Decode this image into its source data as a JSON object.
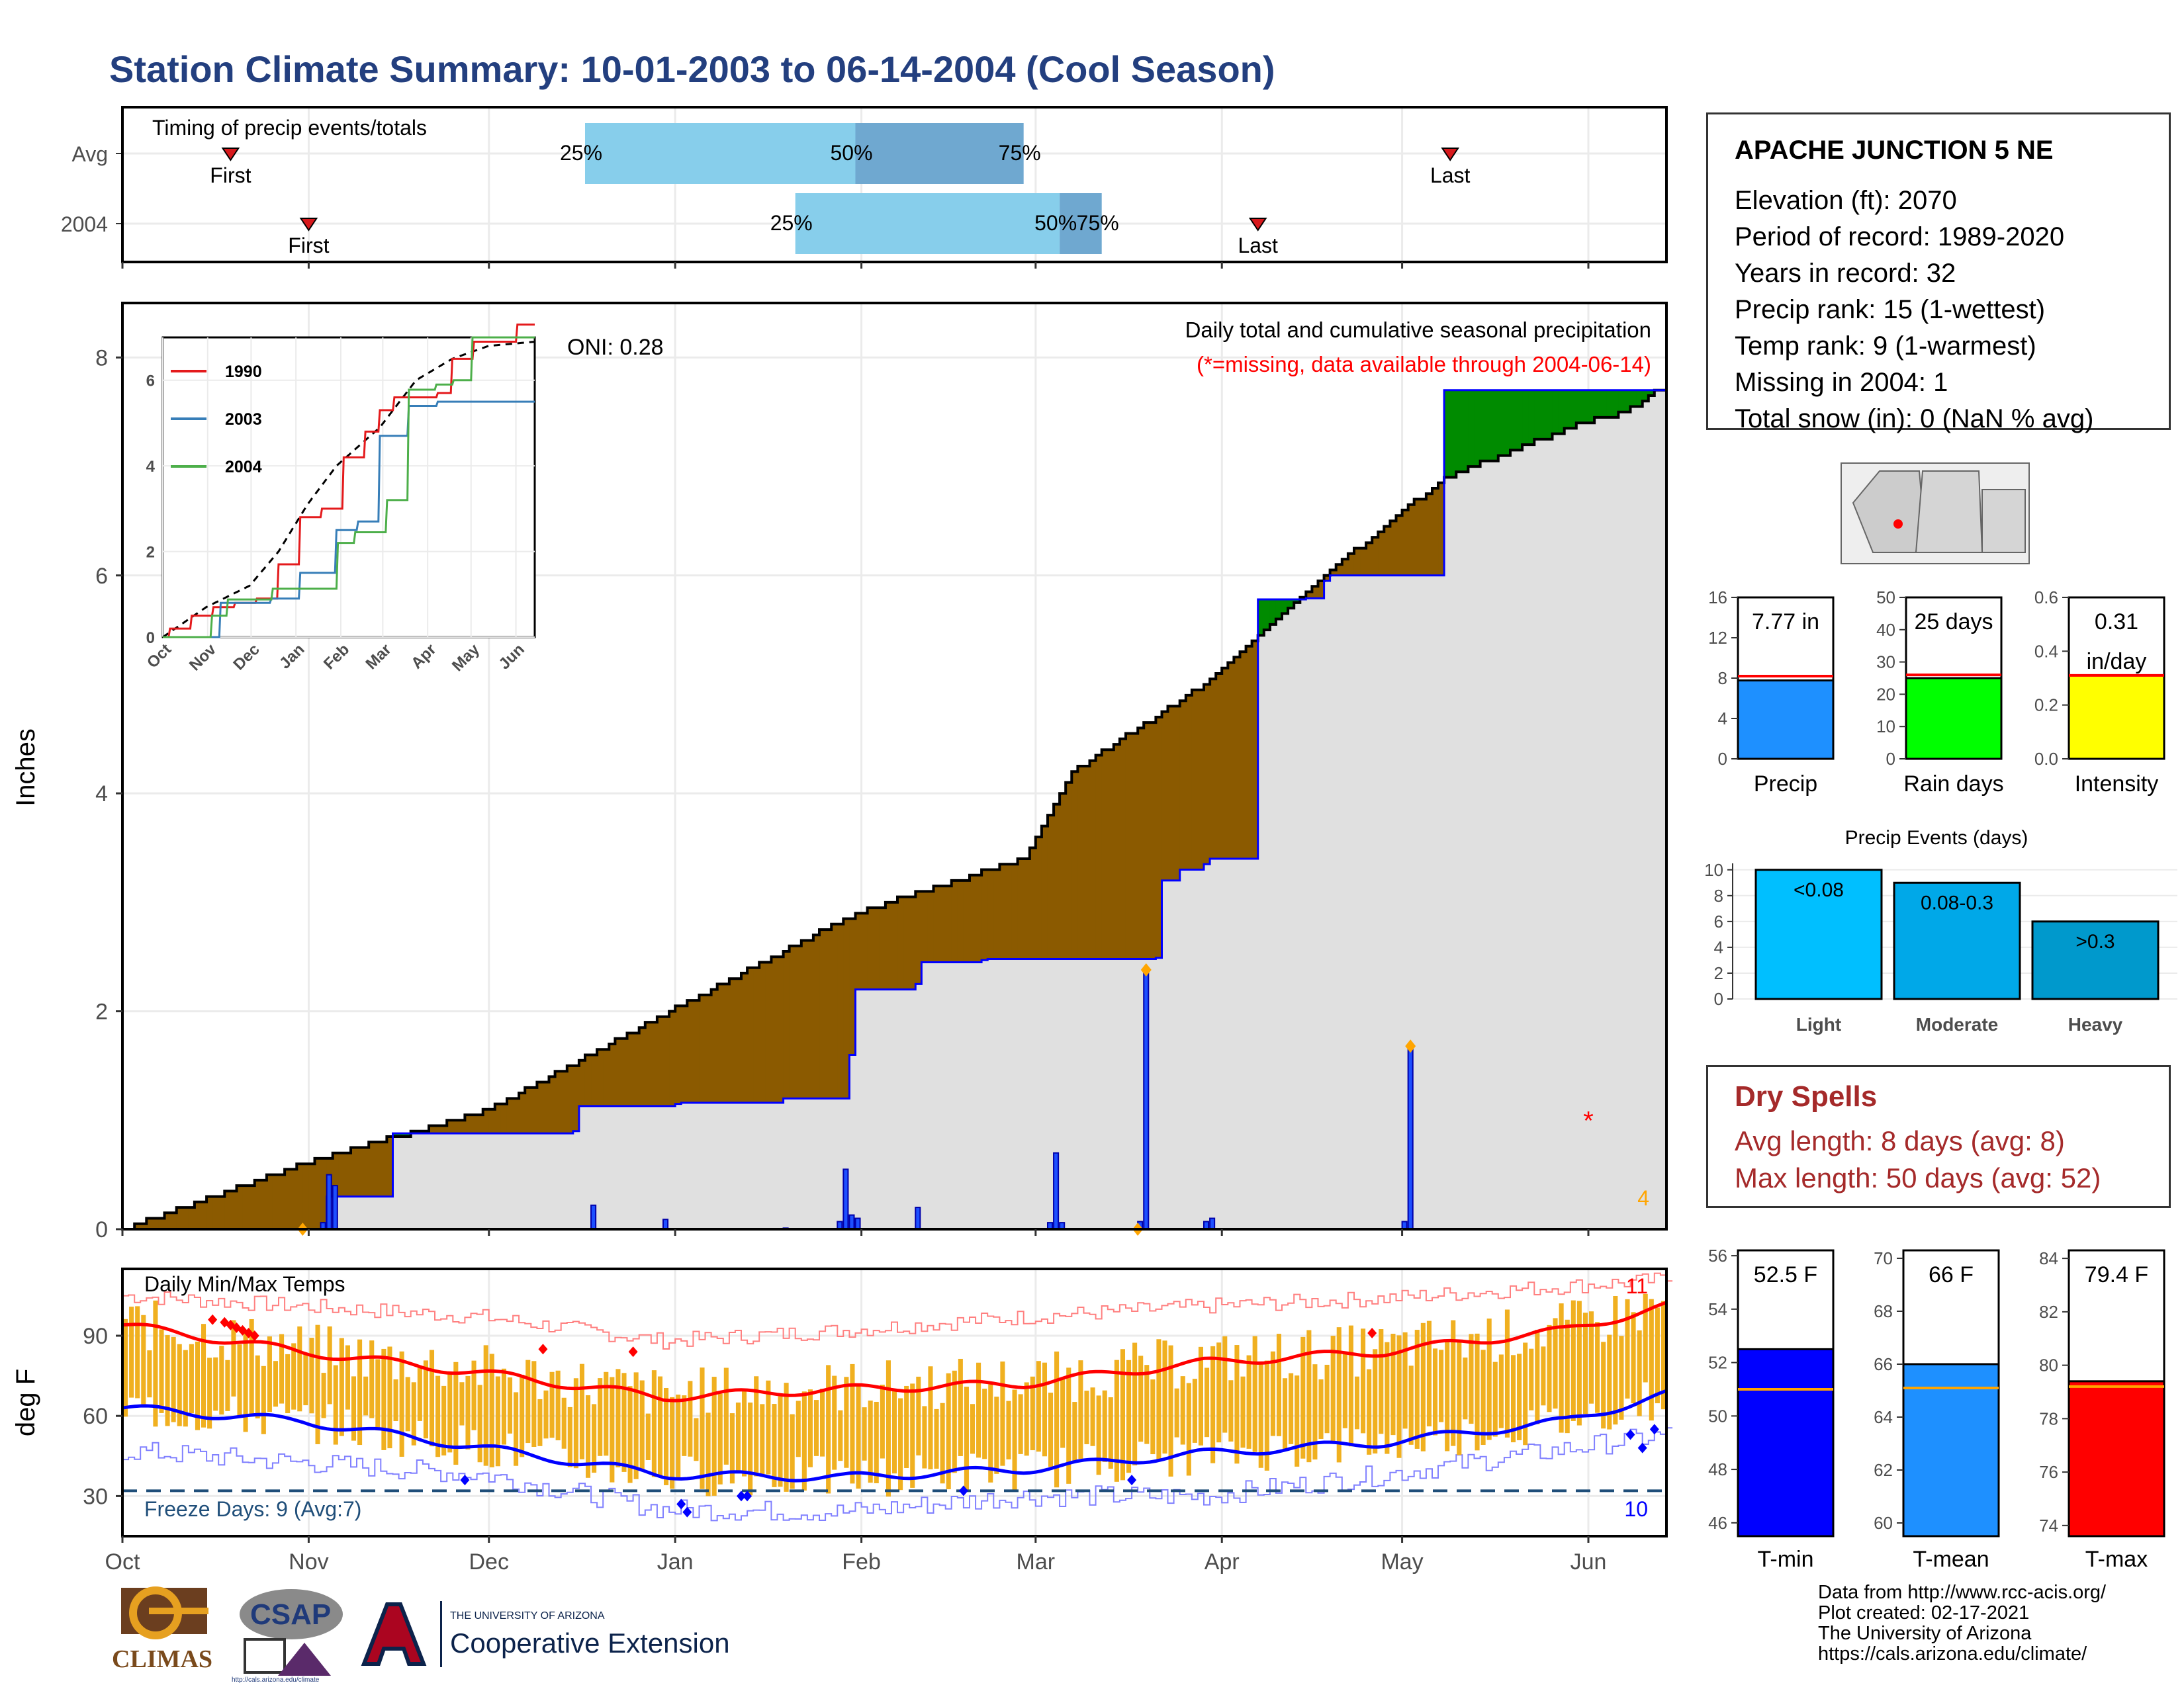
{
  "title": "Station Climate Summary: 10-01-2003 to 06-14-2004 (Cool Season)",
  "timing_panel": {
    "title": "Timing of precip events/totals",
    "rows": [
      {
        "label": "Avg",
        "first_label": "First",
        "last_label": "Last",
        "q25": "25%",
        "q50": "50%",
        "q75": "75%",
        "first_date": "2003-10-19",
        "last_date": "2004-05-09",
        "q25_date": "2003-12-17",
        "q50_date": "2004-01-31",
        "q75_date": "2004-02-28"
      },
      {
        "label": "2004",
        "first_label": "First",
        "last_label": "Last",
        "q25": "25%",
        "q50": "50%",
        "q75": "75%",
        "first_date": "2003-11-01",
        "last_date": "2004-04-07",
        "q25_date": "2004-01-21",
        "q50_date": "2004-03-05",
        "q75_date": "2004-03-12"
      }
    ]
  },
  "precip_panel": {
    "ylabel": "Inches",
    "annotation": "Daily total and cumulative seasonal precipitation",
    "missing_note": "(*=missing, data available through 2004-06-14)",
    "oni": "ONI: 0.28",
    "corner_count": "4",
    "yticks": [
      "0",
      "2",
      "4",
      "6",
      "8"
    ]
  },
  "inset": {
    "legend": [
      "1990",
      "2003",
      "2004"
    ],
    "legend_colors": [
      "#e41a1c",
      "#377eb8",
      "#4daf4a"
    ],
    "yticks": [
      "0",
      "2",
      "4",
      "6"
    ],
    "xticks": [
      "Oct",
      "Nov",
      "Dec",
      "Jan",
      "Feb",
      "Mar",
      "Apr",
      "May",
      "Jun"
    ]
  },
  "temp_panel": {
    "title": "Daily Min/Max Temps",
    "ylabel": "deg F",
    "freeze_label": "Freeze Days: 9 (Avg:7)",
    "max_count": "11",
    "min_count": "10",
    "yticks": [
      "30",
      "60",
      "90"
    ]
  },
  "months": [
    "Oct",
    "Nov",
    "Dec",
    "Jan",
    "Feb",
    "Mar",
    "Apr",
    "May",
    "Jun"
  ],
  "station": {
    "name": "APACHE JUNCTION 5 NE",
    "rows": [
      "Elevation (ft): 2070",
      "Period of record: 1989-2020",
      "Years in record: 32",
      "Precip rank: 15 (1-wettest)",
      "Temp rank: 9 (1-warmest)",
      "Missing in 2004: 1",
      "Total snow (in): 0 (NaN % avg)"
    ]
  },
  "gauges_precip": [
    {
      "label": "Precip",
      "value_text": "7.77 in",
      "value": 7.77,
      "avg": 8.2,
      "ymax": 16,
      "ticks": [
        "0",
        "4",
        "8",
        "12",
        "16"
      ],
      "color": "#1e90ff"
    },
    {
      "label": "Rain days",
      "value_text": "25 days",
      "value": 25,
      "avg": 26,
      "ymax": 50,
      "ticks": [
        "0",
        "10",
        "20",
        "30",
        "40",
        "50"
      ],
      "color": "#00ff00"
    },
    {
      "label": "Intensity",
      "value_text": "0.31\nin/day",
      "value": 0.31,
      "avg": 0.31,
      "ymax": 0.6,
      "ticks": [
        "0.0",
        "0.2",
        "0.4",
        "0.6"
      ],
      "color": "#ffff00"
    }
  ],
  "precip_events": {
    "title": "Precip Events (days)",
    "categories": [
      "Light",
      "Moderate",
      "Heavy"
    ],
    "bar_labels": [
      "<0.08",
      "0.08-0.3",
      ">0.3"
    ],
    "values": [
      10,
      9,
      6
    ],
    "colors": [
      "#00bfff",
      "#00a8e8",
      "#0099cc"
    ],
    "ticks": [
      "0",
      "2",
      "4",
      "6",
      "8",
      "10"
    ]
  },
  "dry_spells": {
    "title": "Dry Spells",
    "avg_line": "Avg length: 8 days (avg: 8)",
    "max_line": "Max length: 50 days (avg: 52)"
  },
  "gauges_temp": [
    {
      "label": "T-min",
      "value_text": "52.5 F",
      "value": 52.5,
      "avg": 51.0,
      "ymin": 45.5,
      "ymax": 56.2,
      "ticks": [
        "46",
        "48",
        "50",
        "52",
        "54",
        "56"
      ],
      "color": "#0000ff"
    },
    {
      "label": "T-mean",
      "value_text": "66 F",
      "value": 66.0,
      "avg": 65.1,
      "ymin": 59.5,
      "ymax": 70.3,
      "ticks": [
        "60",
        "62",
        "64",
        "66",
        "68",
        "70"
      ],
      "color": "#1e90ff"
    },
    {
      "label": "T-max",
      "value_text": "79.4 F",
      "value": 79.4,
      "avg": 79.2,
      "ymin": 73.6,
      "ymax": 84.3,
      "ticks": [
        "74",
        "76",
        "78",
        "80",
        "82",
        "84"
      ],
      "color": "#ff0000"
    }
  ],
  "credits": [
    "Data from http://www.rcc-acis.org/",
    "Plot created: 02-17-2021",
    "The University of Arizona",
    "https://cals.arizona.edu/climate/"
  ],
  "logos": {
    "climas": "CLIMAS",
    "csap": "CSAP",
    "csap_url": "http://cals.arizona.edu/climate",
    "ua_small": "THE UNIVERSITY OF ARIZONA",
    "ua_big": "Cooperative Extension"
  },
  "chart_data": [
    {
      "type": "area",
      "title": "Daily total and cumulative seasonal precipitation",
      "ylabel": "Inches",
      "ylim": [
        0,
        8.5
      ],
      "x_range": [
        "2003-10-01",
        "2004-06-14"
      ],
      "cumulative_avg": [
        [
          0,
          0
        ],
        [
          30,
          0.6
        ],
        [
          61,
          1.1
        ],
        [
          91,
          2.0
        ],
        [
          122,
          2.9
        ],
        [
          150,
          3.4
        ],
        [
          158,
          4.2
        ],
        [
          180,
          5.0
        ],
        [
          200,
          6.0
        ],
        [
          220,
          6.9
        ],
        [
          243,
          7.4
        ],
        [
          250,
          7.5
        ],
        [
          257,
          7.75
        ]
      ],
      "cumulative_2004": [
        [
          0,
          0
        ],
        [
          33,
          0
        ],
        [
          34,
          0.3
        ],
        [
          45,
          0.88
        ],
        [
          75,
          0.9
        ],
        [
          76,
          1.13
        ],
        [
          92,
          1.15
        ],
        [
          93,
          1.16
        ],
        [
          110,
          1.2
        ],
        [
          120,
          1.2
        ],
        [
          121,
          1.6
        ],
        [
          122,
          2.2
        ],
        [
          132,
          2.25
        ],
        [
          133,
          2.45
        ],
        [
          143,
          2.47
        ],
        [
          144,
          2.48
        ],
        [
          172,
          2.49
        ],
        [
          173,
          3.2
        ],
        [
          176,
          3.3
        ],
        [
          180,
          3.35
        ],
        [
          181,
          3.4
        ],
        [
          188,
          3.4
        ],
        [
          189,
          5.78
        ],
        [
          197,
          5.79
        ],
        [
          200,
          5.95
        ],
        [
          201,
          6.0
        ],
        [
          219,
          6.0
        ],
        [
          220,
          7.7
        ],
        [
          257,
          7.77
        ]
      ],
      "daily_2004": [
        [
          33,
          0.06
        ],
        [
          34,
          0.5
        ],
        [
          35,
          0.4
        ],
        [
          78,
          0.22
        ],
        [
          90,
          0.09
        ],
        [
          110,
          0.01
        ],
        [
          119,
          0.07
        ],
        [
          120,
          0.55
        ],
        [
          121,
          0.13
        ],
        [
          122,
          0.1
        ],
        [
          132,
          0.2
        ],
        [
          154,
          0.06
        ],
        [
          155,
          0.7
        ],
        [
          156,
          0.06
        ],
        [
          169,
          0.07
        ],
        [
          170,
          2.38
        ],
        [
          180,
          0.07
        ],
        [
          181,
          0.1
        ],
        [
          213,
          0.07
        ],
        [
          214,
          1.68
        ]
      ],
      "missing_markers": [
        [
          244,
          1.0
        ]
      ]
    },
    {
      "type": "bar",
      "title": "Daily Min/Max Temps",
      "ylabel": "deg F",
      "ylim": [
        15,
        115
      ],
      "freeze_threshold": 32,
      "avg_tmax": [
        [
          0,
          94
        ],
        [
          30,
          84
        ],
        [
          60,
          76
        ],
        [
          90,
          67
        ],
        [
          120,
          70
        ],
        [
          150,
          72
        ],
        [
          180,
          80
        ],
        [
          210,
          84
        ],
        [
          240,
          92
        ],
        [
          257,
          101
        ]
      ],
      "avg_tmin": [
        [
          0,
          63
        ],
        [
          30,
          58
        ],
        [
          60,
          48
        ],
        [
          90,
          38
        ],
        [
          120,
          37
        ],
        [
          150,
          40
        ],
        [
          180,
          46
        ],
        [
          210,
          50
        ],
        [
          240,
          58
        ],
        [
          257,
          68
        ]
      ],
      "record_tmax": [
        [
          0,
          105
        ],
        [
          60,
          97
        ],
        [
          90,
          88
        ],
        [
          120,
          92
        ],
        [
          150,
          97
        ],
        [
          180,
          101
        ],
        [
          210,
          104
        ],
        [
          257,
          111
        ]
      ],
      "record_tmin": [
        [
          0,
          47
        ],
        [
          60,
          38
        ],
        [
          90,
          25
        ],
        [
          120,
          24
        ],
        [
          150,
          30
        ],
        [
          180,
          30
        ],
        [
          210,
          38
        ],
        [
          257,
          53
        ]
      ]
    },
    {
      "type": "bar",
      "title": "Precip Events (days)",
      "categories": [
        "Light",
        "Moderate",
        "Heavy"
      ],
      "values": [
        10,
        9,
        6
      ]
    }
  ]
}
